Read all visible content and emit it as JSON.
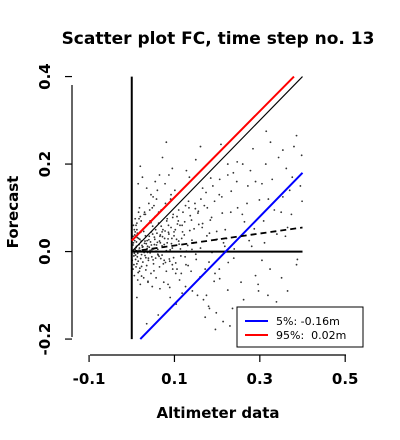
{
  "chart_data": {
    "type": "scatter",
    "title": "Scatter plot FC, time step no. 13",
    "xlabel": "Altimeter data",
    "ylabel": "Forecast",
    "xlim": [
      -0.14,
      0.53
    ],
    "ylim": [
      -0.225,
      0.415
    ],
    "xticks": [
      -0.1,
      0.1,
      0.3,
      0.5
    ],
    "xtick_labels": [
      "-0.1",
      "0.1",
      "0.3",
      "0.5"
    ],
    "yticks": [
      -0.2,
      0.0,
      0.2,
      0.4
    ],
    "ytick_labels": [
      "-0.2",
      "0.0",
      "0.2",
      "0.4"
    ],
    "grid": false,
    "legend_position": "bottom-right",
    "legend": [
      {
        "label": "5%: -0.16m",
        "color": "#0000ff"
      },
      {
        "label": "95%:  0.02m",
        "color": "#ff0000"
      }
    ],
    "lines": [
      {
        "role": "x-zero-axis",
        "color": "#000000",
        "points": [
          [
            0.0,
            -0.2
          ],
          [
            0.0,
            0.4
          ]
        ]
      },
      {
        "role": "y-zero-axis",
        "color": "#000000",
        "points": [
          [
            0.0,
            0.0
          ],
          [
            0.4,
            0.0
          ]
        ]
      },
      {
        "role": "identity",
        "color": "#000000",
        "points": [
          [
            0.0,
            0.0
          ],
          [
            0.4,
            0.4
          ]
        ]
      },
      {
        "role": "upper-95",
        "color": "#ff0000",
        "points": [
          [
            0.0,
            0.025
          ],
          [
            0.38,
            0.4
          ]
        ]
      },
      {
        "role": "lower-5",
        "color": "#0000ff",
        "points": [
          [
            0.02,
            -0.2
          ],
          [
            0.4,
            0.18
          ]
        ]
      },
      {
        "role": "regression",
        "color": "#000000",
        "dashed": true,
        "points": [
          [
            0.0,
            0.0
          ],
          [
            0.4,
            0.055
          ]
        ]
      }
    ],
    "points": [
      [
        0.005,
        -0.01
      ],
      [
        0.008,
        0.005
      ],
      [
        0.011,
        0.012
      ],
      [
        0.004,
        0.02
      ],
      [
        0.014,
        -0.004
      ],
      [
        0.018,
        0.008
      ],
      [
        0.021,
        -0.016
      ],
      [
        0.007,
        0.025
      ],
      [
        0.024,
        0.014
      ],
      [
        0.012,
        -0.028
      ],
      [
        0.027,
        0.004
      ],
      [
        0.016,
        0.03
      ],
      [
        0.031,
        -0.009
      ],
      [
        0.009,
        -0.018
      ],
      [
        0.034,
        0.018
      ],
      [
        0.022,
        0.024
      ],
      [
        0.037,
        -0.002
      ],
      [
        0.003,
        0.035
      ],
      [
        0.041,
        0.01
      ],
      [
        0.026,
        -0.024
      ],
      [
        0.044,
        0.022
      ],
      [
        0.013,
        0.042
      ],
      [
        0.047,
        -0.012
      ],
      [
        0.032,
        0.036
      ],
      [
        0.051,
        0.006
      ],
      [
        0.019,
        -0.038
      ],
      [
        0.054,
        0.028
      ],
      [
        0.039,
        -0.02
      ],
      [
        0.058,
        0.015
      ],
      [
        0.006,
        0.05
      ],
      [
        0.061,
        -0.006
      ],
      [
        0.028,
        0.046
      ],
      [
        0.065,
        0.024
      ],
      [
        0.043,
        0.003
      ],
      [
        0.068,
        -0.016
      ],
      [
        0.015,
        -0.048
      ],
      [
        0.072,
        0.034
      ],
      [
        0.049,
        0.04
      ],
      [
        0.075,
        0.01
      ],
      [
        0.035,
        -0.032
      ],
      [
        0.079,
        -0.025
      ],
      [
        0.056,
        0.05
      ],
      [
        0.083,
        0.02
      ],
      [
        0.01,
        0.06
      ],
      [
        0.086,
        0.044
      ],
      [
        0.062,
        -0.008
      ],
      [
        0.09,
        0.004
      ],
      [
        0.023,
        -0.056
      ],
      [
        0.094,
        0.03
      ],
      [
        0.069,
        0.058
      ],
      [
        0.098,
        -0.014
      ],
      [
        0.045,
        0.066
      ],
      [
        0.102,
        0.05
      ],
      [
        0.076,
        0.016
      ],
      [
        0.106,
        -0.04
      ],
      [
        0.017,
        0.075
      ],
      [
        0.11,
        0.024
      ],
      [
        0.082,
        0.07
      ],
      [
        0.114,
        0.006
      ],
      [
        0.052,
        -0.044
      ],
      [
        0.118,
        0.06
      ],
      [
        0.089,
        -0.022
      ],
      [
        0.123,
        0.038
      ],
      [
        0.029,
        0.085
      ],
      [
        0.127,
        -0.03
      ],
      [
        0.096,
        0.078
      ],
      [
        0.131,
        0.014
      ],
      [
        0.063,
        0.09
      ],
      [
        0.136,
        0.048
      ],
      [
        0.103,
        -0.05
      ],
      [
        0.14,
        0.072
      ],
      [
        0.038,
        -0.068
      ],
      [
        0.145,
        0.02
      ],
      [
        0.11,
        0.095
      ],
      [
        0.15,
        -0.006
      ],
      [
        0.071,
        0.045
      ],
      [
        0.155,
        0.088
      ],
      [
        0.117,
        0.03
      ],
      [
        0.16,
        -0.058
      ],
      [
        0.048,
        0.1
      ],
      [
        0.165,
        0.055
      ],
      [
        0.125,
        -0.012
      ],
      [
        0.17,
        0.105
      ],
      [
        0.085,
        -0.075
      ],
      [
        0.176,
        0.036
      ],
      [
        0.133,
        0.115
      ],
      [
        0.181,
        -0.024
      ],
      [
        0.058,
        0.12
      ],
      [
        0.187,
        0.078
      ],
      [
        0.141,
        0.005
      ],
      [
        0.193,
        -0.068
      ],
      [
        0.092,
        0.13
      ],
      [
        0.199,
        0.046
      ],
      [
        0.149,
        0.098
      ],
      [
        0.205,
        -0.04
      ],
      [
        0.066,
        -0.085
      ],
      [
        0.211,
        0.125
      ],
      [
        0.157,
        0.062
      ],
      [
        0.218,
        0.012
      ],
      [
        0.101,
        0.14
      ],
      [
        0.225,
        -0.088
      ],
      [
        0.166,
        0.145
      ],
      [
        0.232,
        0.09
      ],
      [
        0.078,
        0.155
      ],
      [
        0.239,
        -0.015
      ],
      [
        0.175,
        -0.1
      ],
      [
        0.246,
        0.16
      ],
      [
        0.109,
        0.07
      ],
      [
        0.254,
        0.034
      ],
      [
        0.185,
        0.168
      ],
      [
        0.262,
        -0.11
      ],
      [
        0.087,
        0.175
      ],
      [
        0.27,
        0.11
      ],
      [
        0.195,
        -0.05
      ],
      [
        0.278,
        0.185
      ],
      [
        0.118,
        -0.095
      ],
      [
        0.287,
        0.052
      ],
      [
        0.205,
        0.13
      ],
      [
        0.296,
        -0.075
      ],
      [
        0.095,
        0.19
      ],
      [
        0.305,
        0.155
      ],
      [
        0.215,
        0.02
      ],
      [
        0.314,
        0.2
      ],
      [
        0.128,
        0.185
      ],
      [
        0.324,
        -0.04
      ],
      [
        0.225,
        0.175
      ],
      [
        0.334,
        0.095
      ],
      [
        0.104,
        -0.12
      ],
      [
        0.344,
        0.215
      ],
      [
        0.236,
        -0.13
      ],
      [
        0.354,
        0.125
      ],
      [
        0.139,
        -0.045
      ],
      [
        0.365,
        0.055
      ],
      [
        0.247,
        0.205
      ],
      [
        0.376,
        0.17
      ],
      [
        0.113,
        0.06
      ],
      [
        0.388,
        -0.018
      ],
      [
        0.259,
        0.085
      ],
      [
        0.399,
        0.115
      ],
      [
        0.15,
        0.21
      ],
      [
        0.062,
        -0.145
      ],
      [
        0.271,
        -0.15
      ],
      [
        0.012,
        -0.105
      ],
      [
        0.284,
        0.235
      ],
      [
        0.161,
        0.24
      ],
      [
        0.297,
        -0.09
      ],
      [
        0.072,
        0.215
      ],
      [
        0.311,
        0.02
      ],
      [
        0.172,
        -0.15
      ],
      [
        0.325,
        0.25
      ],
      [
        0.02,
        0.195
      ],
      [
        0.339,
        -0.115
      ],
      [
        0.184,
        0.072
      ],
      [
        0.354,
        0.232
      ],
      [
        0.035,
        -0.165
      ],
      [
        0.37,
        0.14
      ],
      [
        0.196,
        -0.178
      ],
      [
        0.386,
        0.265
      ],
      [
        0.081,
        0.25
      ],
      [
        0.209,
        0.245
      ],
      [
        0.002,
        0.002
      ],
      [
        0.006,
        -0.004
      ],
      [
        0.01,
        0.009
      ],
      [
        0.013,
        -0.012
      ],
      [
        0.017,
        0.016
      ],
      [
        0.02,
        0.002
      ],
      [
        0.023,
        -0.007
      ],
      [
        0.026,
        0.011
      ],
      [
        0.03,
        0.019
      ],
      [
        0.033,
        -0.014
      ],
      [
        0.036,
        0.007
      ],
      [
        0.04,
        0.027
      ],
      [
        0.043,
        -0.003
      ],
      [
        0.046,
        0.015
      ],
      [
        0.05,
        -0.019
      ],
      [
        0.053,
        0.033
      ],
      [
        0.057,
        0.001
      ],
      [
        0.06,
        0.021
      ],
      [
        0.064,
        -0.011
      ],
      [
        0.067,
        0.038
      ],
      [
        0.071,
        0.013
      ],
      [
        0.074,
        -0.028
      ],
      [
        0.078,
        0.047
      ],
      [
        0.081,
        0.002
      ],
      [
        0.085,
        0.029
      ],
      [
        0.088,
        -0.017
      ],
      [
        0.092,
        0.055
      ],
      [
        0.095,
        0.008
      ],
      [
        0.099,
        0.036
      ],
      [
        0.103,
        -0.026
      ],
      [
        0.107,
        0.063
      ],
      [
        0.111,
        0.017
      ],
      [
        0.115,
        -0.01
      ],
      [
        0.119,
        0.045
      ],
      [
        0.124,
        0.068
      ],
      [
        0.128,
        0.001
      ],
      [
        0.132,
        -0.032
      ],
      [
        0.137,
        0.082
      ],
      [
        0.141,
        0.026
      ],
      [
        0.146,
        0.052
      ],
      [
        0.151,
        -0.018
      ],
      [
        0.156,
        0.092
      ],
      [
        0.161,
        0.008
      ],
      [
        0.166,
        0.064
      ],
      [
        0.172,
        -0.04
      ],
      [
        0.177,
        0.1
      ],
      [
        0.182,
        0.042
      ],
      [
        0.188,
        -0.002
      ],
      [
        0.194,
        0.115
      ],
      [
        0.2,
        0.028
      ],
      [
        0.206,
        -0.062
      ],
      [
        0.212,
        0.088
      ],
      [
        0.219,
        0.05
      ],
      [
        0.226,
        -0.025
      ],
      [
        0.233,
        0.138
      ],
      [
        0.24,
        0.006
      ],
      [
        0.248,
        0.1
      ],
      [
        0.256,
        -0.07
      ],
      [
        0.264,
        0.068
      ],
      [
        0.272,
        0.15
      ],
      [
        0.281,
        0.012
      ],
      [
        0.29,
        -0.055
      ],
      [
        0.299,
        0.118
      ],
      [
        0.309,
        0.07
      ],
      [
        0.319,
        -0.1
      ],
      [
        0.329,
        0.165
      ],
      [
        0.34,
        0.04
      ],
      [
        0.351,
        -0.06
      ],
      [
        0.362,
        0.19
      ],
      [
        0.374,
        0.085
      ],
      [
        0.386,
        -0.03
      ],
      [
        0.398,
        0.22
      ],
      [
        0.045,
        0.13
      ],
      [
        0.09,
        -0.105
      ],
      [
        0.135,
        0.17
      ],
      [
        0.18,
        -0.125
      ],
      [
        0.225,
        0.2
      ],
      [
        0.27,
        -0.14
      ],
      [
        0.315,
        0.275
      ],
      [
        0.36,
        0.035
      ],
      [
        0.001,
        -0.02
      ],
      [
        0.003,
        0.015
      ],
      [
        0.005,
        -0.03
      ],
      [
        0.007,
        0.038
      ],
      [
        0.009,
        -0.008
      ],
      [
        0.011,
        0.022
      ],
      [
        0.013,
        0.032
      ],
      [
        0.015,
        -0.022
      ],
      [
        0.017,
        0.003
      ],
      [
        0.019,
        0.028
      ],
      [
        0.021,
        0.044
      ],
      [
        0.023,
        -0.034
      ],
      [
        0.025,
        0.01
      ],
      [
        0.027,
        0.052
      ],
      [
        0.029,
        -0.002
      ],
      [
        0.031,
        0.024
      ],
      [
        0.033,
        -0.042
      ],
      [
        0.035,
        0.06
      ],
      [
        0.037,
        0.012
      ],
      [
        0.039,
        -0.015
      ],
      [
        0.041,
        0.035
      ],
      [
        0.043,
        0.07
      ],
      [
        0.045,
        -0.05
      ],
      [
        0.047,
        0.004
      ],
      [
        0.049,
        0.058
      ],
      [
        0.051,
        -0.028
      ],
      [
        0.053,
        0.016
      ],
      [
        0.055,
        0.08
      ],
      [
        0.057,
        -0.06
      ],
      [
        0.059,
        0.042
      ],
      [
        0.061,
        0.005
      ],
      [
        0.063,
        0.065
      ],
      [
        0.065,
        -0.035
      ],
      [
        0.067,
        0.02
      ],
      [
        0.069,
        0.095
      ],
      [
        0.071,
        -0.008
      ],
      [
        0.073,
        0.05
      ],
      [
        0.075,
        -0.07
      ],
      [
        0.077,
        0.03
      ],
      [
        0.079,
        0.11
      ],
      [
        0.081,
        -0.045
      ],
      [
        0.083,
        0.075
      ],
      [
        0.085,
        0.0
      ],
      [
        0.087,
        0.04
      ],
      [
        0.089,
        -0.082
      ],
      [
        0.091,
        0.12
      ],
      [
        0.093,
        0.018
      ],
      [
        0.095,
        -0.03
      ],
      [
        0.097,
        0.085
      ],
      [
        0.099,
        0.045
      ],
      [
        0.015,
        0.155
      ],
      [
        0.025,
        0.17
      ],
      [
        0.035,
        0.145
      ],
      [
        0.055,
        0.16
      ],
      [
        0.065,
        0.175
      ],
      [
        0.04,
        0.11
      ],
      [
        0.03,
        0.09
      ],
      [
        0.05,
        0.125
      ],
      [
        0.02,
        0.08
      ],
      [
        0.06,
        0.14
      ],
      [
        0.008,
        0.045
      ],
      [
        0.012,
        0.065
      ],
      [
        0.018,
        -0.045
      ],
      [
        0.022,
        0.07
      ],
      [
        0.028,
        -0.06
      ],
      [
        0.032,
        0.085
      ],
      [
        0.038,
        -0.07
      ],
      [
        0.042,
        0.095
      ],
      [
        0.048,
        -0.08
      ],
      [
        0.052,
        0.105
      ],
      [
        0.105,
        0.028
      ],
      [
        0.112,
        -0.065
      ],
      [
        0.12,
        0.09
      ],
      [
        0.126,
        -0.08
      ],
      [
        0.134,
        0.1
      ],
      [
        0.142,
        -0.09
      ],
      [
        0.148,
        0.11
      ],
      [
        0.154,
        -0.1
      ],
      [
        0.162,
        0.12
      ],
      [
        0.168,
        -0.11
      ],
      [
        0.174,
        0.135
      ],
      [
        0.182,
        -0.13
      ],
      [
        0.19,
        0.15
      ],
      [
        0.198,
        -0.14
      ],
      [
        0.206,
        0.165
      ],
      [
        0.214,
        -0.16
      ],
      [
        0.222,
        0.03
      ],
      [
        0.23,
        -0.17
      ],
      [
        0.238,
        0.18
      ],
      [
        0.25,
        -0.155
      ],
      [
        0.26,
        0.2
      ],
      [
        0.275,
        0.025
      ],
      [
        0.29,
        0.16
      ],
      [
        0.305,
        -0.02
      ],
      [
        0.32,
        0.12
      ],
      [
        0.335,
        -0.145
      ],
      [
        0.35,
        0.09
      ],
      [
        0.365,
        -0.09
      ],
      [
        0.38,
        0.24
      ],
      [
        0.395,
        0.15
      ],
      [
        0.003,
        -0.04
      ],
      [
        0.004,
        0.06
      ],
      [
        0.006,
        -0.055
      ],
      [
        0.008,
        0.075
      ],
      [
        0.01,
        -0.035
      ],
      [
        0.012,
        0.05
      ],
      [
        0.014,
        -0.065
      ],
      [
        0.016,
        0.09
      ],
      [
        0.018,
        0.1
      ],
      [
        0.02,
        -0.075
      ],
      [
        0.036,
        0.025
      ],
      [
        0.046,
        0.045
      ],
      [
        0.056,
        -0.015
      ],
      [
        0.066,
        0.035
      ],
      [
        0.076,
        -0.02
      ],
      [
        0.086,
        0.06
      ],
      [
        0.096,
        -0.04
      ],
      [
        0.106,
        0.08
      ],
      [
        0.116,
        -0.05
      ],
      [
        0.126,
        0.105
      ]
    ]
  }
}
